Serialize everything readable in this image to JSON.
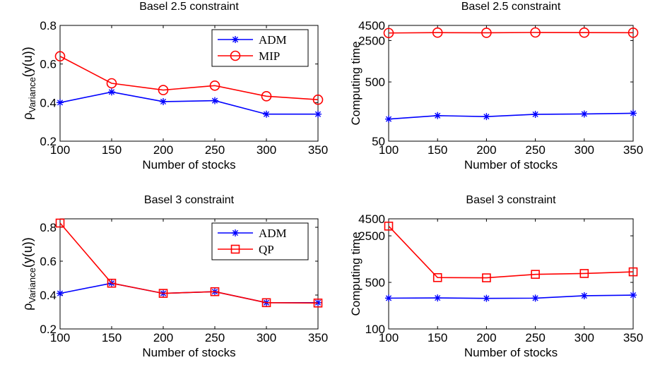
{
  "chart_data": [
    {
      "type": "line",
      "title": "Basel 2.5 constraint",
      "xlabel": "Number of stocks",
      "ylabel_main": "ρ",
      "ylabel_sub": "Variance",
      "ylabel_tail": "(y(u))",
      "x": [
        100,
        150,
        200,
        250,
        300,
        350
      ],
      "xlim": [
        100,
        350
      ],
      "ylim": [
        0.2,
        0.8
      ],
      "yscale": "linear",
      "yticks": [
        0.2,
        0.4,
        0.6,
        0.8
      ],
      "ytick_labels": [
        "0.2",
        "0.4",
        "0.6",
        "0.8"
      ],
      "legend": "top-right",
      "series": [
        {
          "name": "ADM",
          "color": "#0000ff",
          "marker": "star",
          "values": [
            0.4,
            0.455,
            0.405,
            0.41,
            0.34,
            0.34
          ]
        },
        {
          "name": "MIP",
          "color": "#ff0000",
          "marker": "circle",
          "values": [
            0.64,
            0.5,
            0.465,
            0.488,
            0.433,
            0.415
          ]
        }
      ]
    },
    {
      "type": "line",
      "title": "Basel 2.5 constraint",
      "xlabel": "Number of stocks",
      "ylabel": "Computing time",
      "x": [
        100,
        150,
        200,
        250,
        300,
        350
      ],
      "xlim": [
        100,
        350
      ],
      "ylim": [
        50,
        4500
      ],
      "yscale": "log",
      "yticks": [
        50,
        500,
        2500,
        4500
      ],
      "ytick_labels": [
        "50",
        "500",
        "2500",
        "4500"
      ],
      "series": [
        {
          "name": "ADM",
          "color": "#0000ff",
          "marker": "star",
          "values": [
            118,
            135,
            130,
            142,
            144,
            148
          ]
        },
        {
          "name": "MIP",
          "color": "#ff0000",
          "marker": "circle",
          "values": [
            3350,
            3400,
            3380,
            3420,
            3400,
            3390
          ]
        }
      ]
    },
    {
      "type": "line",
      "title": "Basel 3 constraint",
      "xlabel": "Number of stocks",
      "ylabel_main": "ρ",
      "ylabel_sub": "Variance",
      "ylabel_tail": "(y(u))",
      "x": [
        100,
        150,
        200,
        250,
        300,
        350
      ],
      "xlim": [
        100,
        350
      ],
      "ylim": [
        0.2,
        0.85
      ],
      "yscale": "linear",
      "yticks": [
        0.2,
        0.4,
        0.6,
        0.8
      ],
      "ytick_labels": [
        "0.2",
        "0.4",
        "0.6",
        "0.8"
      ],
      "legend": "top-right",
      "series": [
        {
          "name": "ADM",
          "color": "#0000ff",
          "marker": "star",
          "values": [
            0.41,
            0.47,
            0.41,
            0.42,
            0.355,
            0.355
          ]
        },
        {
          "name": "QP",
          "color": "#ff0000",
          "marker": "square",
          "values": [
            0.825,
            0.47,
            0.41,
            0.42,
            0.355,
            0.353
          ]
        }
      ]
    },
    {
      "type": "line",
      "title": "Basel 3 constraint",
      "xlabel": "Number of stocks",
      "ylabel": "Computing time",
      "x": [
        100,
        150,
        200,
        250,
        300,
        350
      ],
      "xlim": [
        100,
        350
      ],
      "ylim": [
        100,
        4500
      ],
      "yscale": "log",
      "yticks": [
        100,
        500,
        2500,
        4500
      ],
      "ytick_labels": [
        "100",
        "500",
        "2500",
        "4500"
      ],
      "series": [
        {
          "name": "ADM",
          "color": "#0000ff",
          "marker": "star",
          "values": [
            290,
            292,
            288,
            290,
            315,
            322
          ]
        },
        {
          "name": "QP",
          "color": "#ff0000",
          "marker": "square",
          "values": [
            3500,
            590,
            585,
            660,
            680,
            720
          ]
        }
      ]
    }
  ]
}
